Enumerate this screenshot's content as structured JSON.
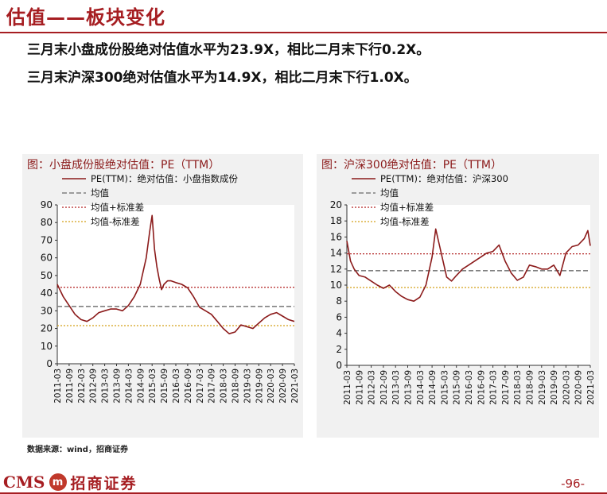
{
  "header": {
    "title": "估值——板块变化",
    "bullet1": "三月末小盘成份股绝对估值水平为23.9X，相比二月末下行0.2X。",
    "bullet2": "三月末沪深300绝对估值水平为14.9X，相比二月末下行1.0X。"
  },
  "footer": {
    "source": "数据来源：wind，招商证券",
    "logo_cms": "CMS",
    "logo_cn": "招商证券",
    "page": "-96-"
  },
  "colors": {
    "accent": "#a61e22",
    "line": "#8b1a1a",
    "mean": "#808080",
    "upper": "#b22222",
    "lower": "#d4a017"
  },
  "chart_data": [
    {
      "type": "line",
      "title": "图：小盘成份股绝对估值：PE（TTM）",
      "legend": [
        "PE(TTM)：绝对估值：小盘指数成份",
        "均值",
        "均值+标准差",
        "均值-标准差"
      ],
      "x_ticks": [
        "2011-03",
        "2011-09",
        "2012-03",
        "2012-09",
        "2013-03",
        "2013-09",
        "2014-03",
        "2014-09",
        "2015-03",
        "2015-09",
        "2016-03",
        "2016-09",
        "2017-03",
        "2017-09",
        "2018-03",
        "2018-09",
        "2019-03",
        "2019-09",
        "2020-03",
        "2020-09",
        "2021-03"
      ],
      "y_ticks": [
        0,
        10,
        20,
        30,
        40,
        50,
        60,
        70,
        80,
        90
      ],
      "ylim": [
        0,
        90
      ],
      "mean": 32.5,
      "mean_plus_std": 43.3,
      "mean_minus_std": 21.6,
      "series": [
        {
          "name": "PE(TTM)：绝对估值：小盘指数成份",
          "x": [
            0,
            0.5,
            1,
            1.5,
            2,
            2.5,
            3,
            3.5,
            4,
            4.5,
            5,
            5.5,
            6,
            6.5,
            7,
            7.5,
            7.8,
            8,
            8.2,
            8.4,
            8.6,
            8.8,
            9,
            9.3,
            9.6,
            10,
            10.5,
            11,
            11.5,
            12,
            12.5,
            13,
            13.5,
            14,
            14.5,
            15,
            15.5,
            16,
            16.5,
            17,
            17.5,
            18,
            18.5,
            19,
            19.5,
            20
          ],
          "y": [
            45,
            38,
            33,
            28,
            25,
            24,
            26,
            29,
            30,
            31,
            31,
            30,
            33,
            38,
            45,
            60,
            75,
            84,
            65,
            55,
            48,
            42,
            45,
            47,
            47,
            46,
            45,
            43,
            38,
            32,
            30,
            28,
            24,
            20,
            17,
            18,
            22,
            21,
            20,
            23,
            26,
            28,
            29,
            27,
            25,
            24
          ]
        }
      ]
    },
    {
      "type": "line",
      "title": "图：沪深300绝对估值：PE（TTM）",
      "legend": [
        "PE(TTM)：绝对估值：沪深300",
        "均值",
        "均值+标准差",
        "均值-标准差"
      ],
      "x_ticks": [
        "2011-03",
        "2011-09",
        "2012-03",
        "2012-09",
        "2013-03",
        "2013-09",
        "2014-03",
        "2014-09",
        "2015-03",
        "2015-09",
        "2016-03",
        "2016-09",
        "2017-03",
        "2017-09",
        "2018-03",
        "2018-09",
        "2019-03",
        "2019-09",
        "2020-03",
        "2020-09",
        "2021-03"
      ],
      "y_ticks": [
        0,
        2,
        4,
        6,
        8,
        10,
        12,
        14,
        16,
        18,
        20
      ],
      "ylim": [
        0,
        20
      ],
      "mean": 11.8,
      "mean_plus_std": 13.9,
      "mean_minus_std": 9.7,
      "series": [
        {
          "name": "PE(TTM)：绝对估值：沪深300",
          "x": [
            0,
            0.3,
            0.6,
            1,
            1.5,
            2,
            2.5,
            3,
            3.5,
            4,
            4.5,
            5,
            5.5,
            6,
            6.5,
            7,
            7.3,
            7.6,
            7.9,
            8.2,
            8.6,
            9,
            9.5,
            10,
            10.5,
            11,
            11.5,
            12,
            12.5,
            13,
            13.5,
            14,
            14.5,
            15,
            15.5,
            16,
            16.5,
            17,
            17.5,
            18,
            18.5,
            19,
            19.5,
            19.8,
            20
          ],
          "y": [
            15.5,
            13,
            12,
            11.2,
            11,
            10.5,
            10,
            9.6,
            10,
            9.2,
            8.6,
            8.2,
            8,
            8.5,
            10,
            13.5,
            17,
            15,
            13,
            11,
            10.5,
            11.2,
            12,
            12.5,
            13,
            13.5,
            14,
            14.2,
            15,
            13,
            11.5,
            10.6,
            11,
            12.5,
            12.3,
            12,
            12,
            12.5,
            11.2,
            14,
            14.8,
            15,
            15.8,
            16.8,
            14.9
          ]
        }
      ]
    }
  ]
}
